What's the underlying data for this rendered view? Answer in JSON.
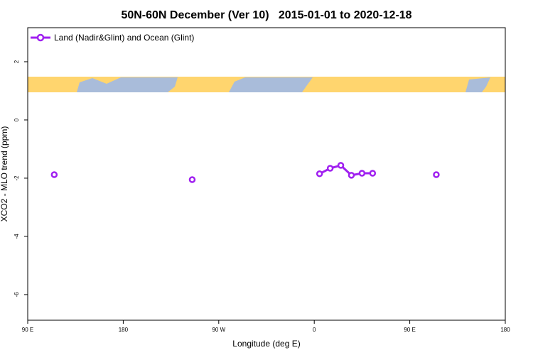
{
  "chart_data": {
    "type": "line",
    "title": "50N-60N December (Ver 10)   2015-01-01 to 2020-12-18",
    "xlabel": "Longitude (deg E)",
    "ylabel": "XCO2 - MLO trend (ppm)",
    "x": [
      -265,
      -255,
      -245,
      -235,
      -225,
      -215,
      -205,
      -195,
      -185,
      -175,
      -165,
      -155,
      -145,
      -135,
      -125,
      -115,
      -105,
      -95,
      -85,
      -75,
      -65,
      -55,
      -45,
      -35,
      -25,
      -15,
      -5,
      5,
      15,
      25,
      35,
      45,
      55,
      65,
      75,
      85,
      95,
      105,
      115,
      125,
      135,
      145,
      155,
      165,
      175
    ],
    "series": [
      {
        "name": "Land (Nadir&Glint) and Ocean (Glint)",
        "color": "#a020f0",
        "values": [
          null,
          null,
          -1.88,
          null,
          null,
          null,
          null,
          null,
          null,
          null,
          null,
          null,
          null,
          null,
          null,
          -2.05,
          null,
          null,
          null,
          null,
          null,
          null,
          null,
          null,
          null,
          null,
          null,
          -1.85,
          -1.66,
          -1.56,
          -1.9,
          -1.83,
          -1.83,
          null,
          null,
          null,
          null,
          null,
          -1.88,
          null,
          null,
          null,
          null,
          null,
          null
        ]
      }
    ],
    "xlim": [
      -270,
      180
    ],
    "xticks": [
      {
        "value": -270,
        "label": "90 E"
      },
      {
        "value": -180,
        "label": "180"
      },
      {
        "value": -90,
        "label": "90 W"
      },
      0,
      {
        "value": 90,
        "label": "90 E"
      },
      {
        "value": 180,
        "label": "180"
      }
    ],
    "ylim": [
      -6.88,
      3.17
    ],
    "yticks": [
      -6,
      -4,
      -2,
      0,
      2
    ],
    "legend": "top-left"
  }
}
